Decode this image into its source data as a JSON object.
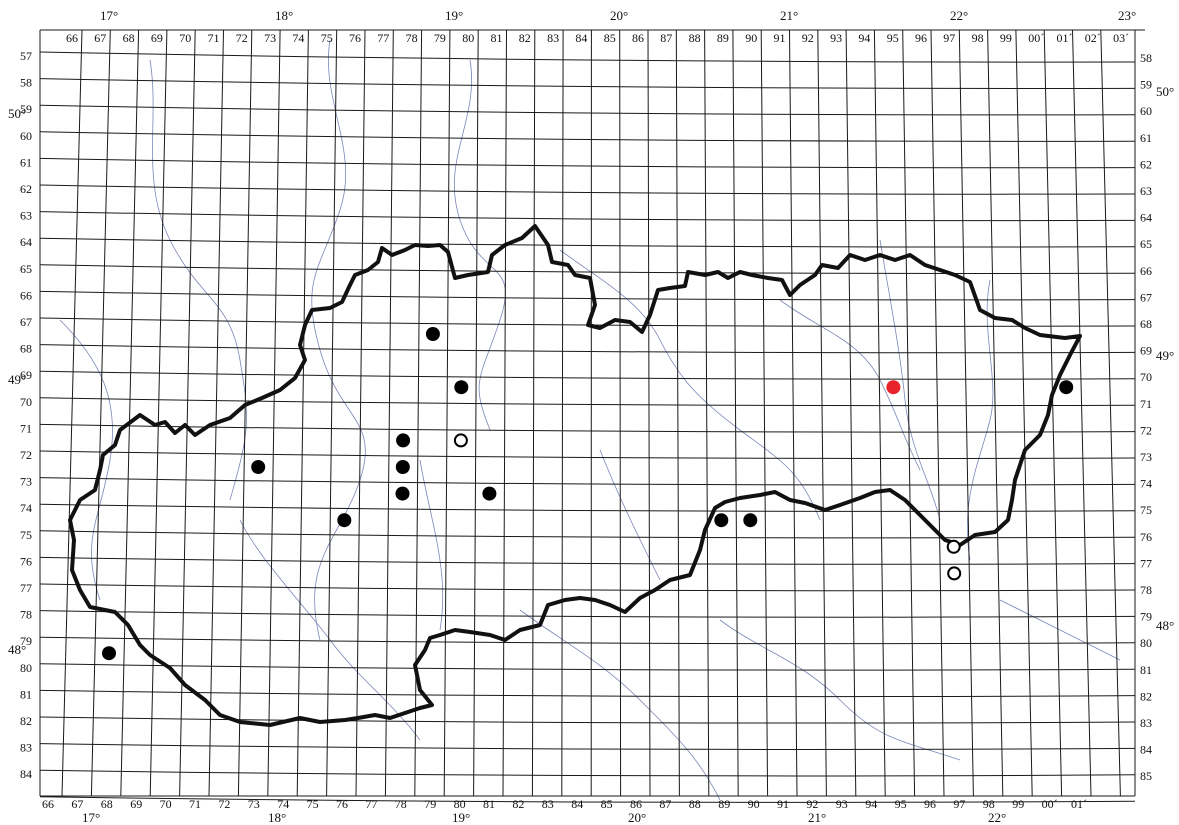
{
  "map": {
    "bottom_labels": [
      "66",
      "67",
      "68",
      "69",
      "70",
      "71",
      "72",
      "73",
      "74",
      "75",
      "76",
      "77",
      "78",
      "79",
      "80",
      "81",
      "82",
      "83",
      "84",
      "85",
      "86",
      "87",
      "88",
      "89",
      "90",
      "91",
      "92",
      "93",
      "94",
      "95",
      "96",
      "97",
      "98",
      "99",
      "00´",
      "01´"
    ],
    "top_labels": [
      "66",
      "67",
      "68",
      "69",
      "70",
      "71",
      "72",
      "73",
      "74",
      "75",
      "76",
      "77",
      "78",
      "79",
      "80",
      "81",
      "82",
      "83",
      "84",
      "85",
      "86",
      "87",
      "88",
      "89",
      "90",
      "91",
      "92",
      "93",
      "94",
      "95",
      "96",
      "97",
      "98",
      "99",
      "00´",
      "01´",
      "02´",
      "03´"
    ],
    "left_labels": [
      "57",
      "58",
      "59",
      "60",
      "61",
      "62",
      "63",
      "64",
      "65",
      "66",
      "67",
      "68",
      "69",
      "70",
      "71",
      "72",
      "73",
      "74",
      "75",
      "76",
      "77",
      "78",
      "79",
      "80",
      "81",
      "82",
      "83",
      "84"
    ],
    "right_labels": [
      "58",
      "59",
      "60",
      "61",
      "62",
      "63",
      "64",
      "65",
      "66",
      "67",
      "68",
      "69",
      "70",
      "71",
      "72",
      "73",
      "74",
      "75",
      "76",
      "77",
      "78",
      "79",
      "80",
      "81",
      "82",
      "83",
      "84",
      "85"
    ],
    "top_degrees": [
      "17°",
      "18°",
      "19°",
      "20°",
      "21°",
      "22°",
      "23°"
    ],
    "bottom_degrees": [
      "17°",
      "18°",
      "19°",
      "20°",
      "21°",
      "22°"
    ],
    "left_degrees": [
      "50°",
      "49°",
      "48°"
    ],
    "right_degrees": [
      "50°",
      "49°",
      "48°"
    ],
    "colors": {
      "record": "#000000",
      "open_record": "#ffffff",
      "highlight": "#e8232a",
      "border": "#111111",
      "river": "#7a86b8"
    },
    "records_filled": [
      {
        "label": "78/67"
      },
      {
        "label": "79/69"
      },
      {
        "label": "72/72"
      },
      {
        "label": "77/71"
      },
      {
        "label": "77/72"
      },
      {
        "label": "77/73"
      },
      {
        "label": "80/73"
      },
      {
        "label": "75/74"
      },
      {
        "label": "88/74"
      },
      {
        "label": "89/74"
      },
      {
        "label": "67/79"
      },
      {
        "label": "00/69"
      }
    ],
    "records_open": [
      {
        "label": "79/71"
      },
      {
        "label": "96/75"
      },
      {
        "label": "96/76"
      }
    ],
    "records_highlight": [
      {
        "label": "94/69"
      }
    ]
  }
}
